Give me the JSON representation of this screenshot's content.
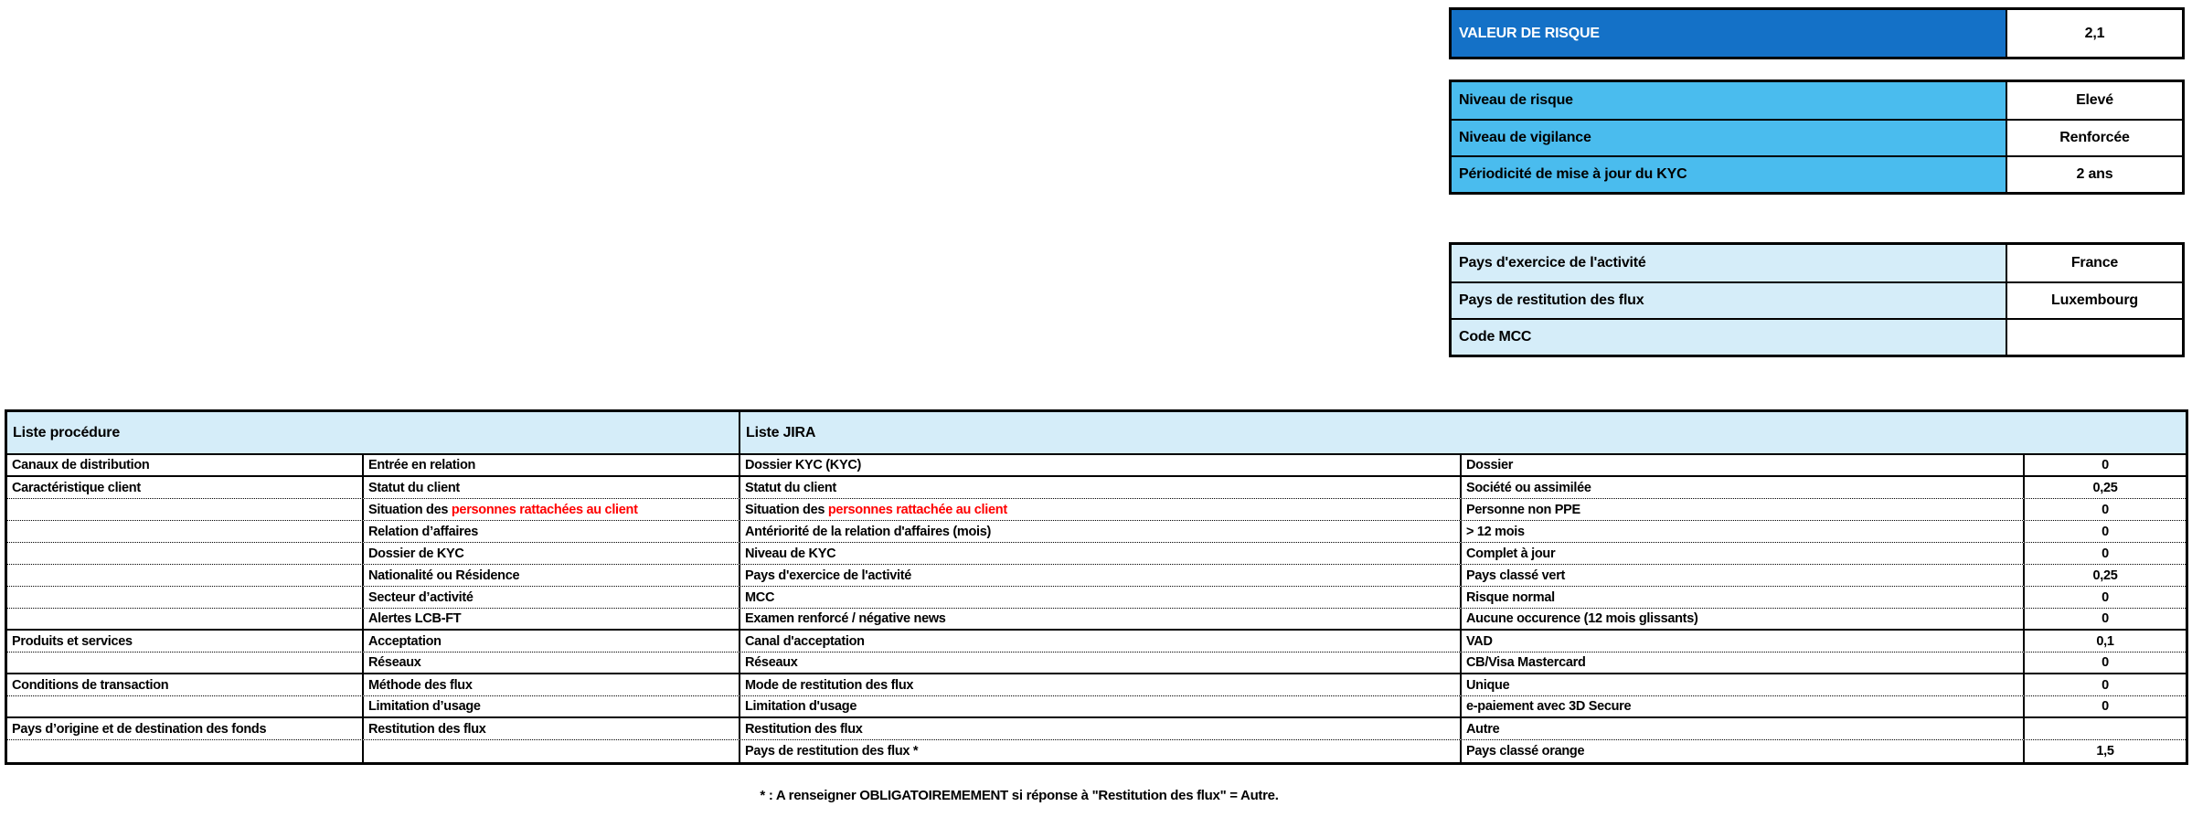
{
  "summary": {
    "risk_value": {
      "label": "VALEUR DE RISQUE",
      "value": "2,1"
    },
    "levels": [
      {
        "label": "Niveau de risque",
        "value": "Elevé"
      },
      {
        "label": "Niveau de vigilance",
        "value": "Renforcée"
      },
      {
        "label": "Périodicité de mise à jour du KYC",
        "value": "2 ans"
      }
    ],
    "pays": [
      {
        "label": "Pays d'exercice de l'activité",
        "value": "France"
      },
      {
        "label": "Pays de restitution des flux",
        "value": "Luxembourg"
      },
      {
        "label": "Code MCC",
        "value": ""
      }
    ]
  },
  "table": {
    "header_procedure": "Liste procédure",
    "header_jira": "Liste JIRA",
    "rows": [
      {
        "category": "Canaux de distribution",
        "procedure": "Entrée en relation",
        "procedure_red": "",
        "jira": "Dossier KYC (KYC)",
        "jira_red": "",
        "value": "Dossier",
        "score": "0",
        "sep": "solid"
      },
      {
        "category": "Caractéristique client",
        "procedure": "Statut du client",
        "procedure_red": "",
        "jira": "Statut du client",
        "jira_red": "",
        "value": "Société ou assimilée",
        "score": "0,25",
        "sep": "dotted"
      },
      {
        "category": "",
        "procedure": "Situation des ",
        "procedure_red": "personnes rattachées au client",
        "jira": "Situation des ",
        "jira_red": "personnes rattachée au client",
        "value": "Personne non PPE",
        "score": "0",
        "sep": "dotted"
      },
      {
        "category": "",
        "procedure": "Relation d’affaires",
        "procedure_red": "",
        "jira": "Antériorité de la relation d'affaires (mois)",
        "jira_red": "",
        "value": "> 12 mois",
        "score": "0",
        "sep": "dotted"
      },
      {
        "category": "",
        "procedure": "Dossier de KYC",
        "procedure_red": "",
        "jira": "Niveau de KYC",
        "jira_red": "",
        "value": "Complet à jour",
        "score": "0",
        "sep": "dotted"
      },
      {
        "category": "",
        "procedure": "Nationalité ou Résidence",
        "procedure_red": "",
        "jira": "Pays d'exercice de l'activité",
        "jira_red": "",
        "value": "Pays classé vert",
        "score": "0,25",
        "sep": "dotted"
      },
      {
        "category": "",
        "procedure": "Secteur d’activité",
        "procedure_red": "",
        "jira": "MCC",
        "jira_red": "",
        "value": "Risque normal",
        "score": "0",
        "sep": "dotted"
      },
      {
        "category": "",
        "procedure": "Alertes LCB-FT",
        "procedure_red": "",
        "jira": "Examen renforcé / négative news",
        "jira_red": "",
        "value": "Aucune occurence (12 mois glissants)",
        "score": "0",
        "sep": "solid"
      },
      {
        "category": "Produits et services",
        "procedure": "Acceptation",
        "procedure_red": "",
        "jira": "Canal d'acceptation",
        "jira_red": "",
        "value": "VAD",
        "score": "0,1",
        "sep": "dotted"
      },
      {
        "category": "",
        "procedure": "Réseaux",
        "procedure_red": "",
        "jira": "Réseaux",
        "jira_red": "",
        "value": "CB/Visa Mastercard",
        "score": "0",
        "sep": "solid"
      },
      {
        "category": "Conditions de transaction",
        "procedure": "Méthode des flux",
        "procedure_red": "",
        "jira": "Mode de restitution des flux",
        "jira_red": "",
        "value": "Unique",
        "score": "0",
        "sep": "dotted"
      },
      {
        "category": "",
        "procedure": "Limitation d’usage",
        "procedure_red": "",
        "jira": "Limitation d'usage",
        "jira_red": "",
        "value": "e-paiement avec 3D Secure",
        "score": "0",
        "sep": "solid"
      },
      {
        "category": "Pays d’origine et de destination des fonds",
        "procedure": "Restitution des flux",
        "procedure_red": "",
        "jira": "Restitution des flux",
        "jira_red": "",
        "value": "Autre",
        "score": "",
        "sep": "dotted"
      },
      {
        "category": "",
        "procedure": "",
        "procedure_red": "",
        "jira": "Pays de restitution des flux *",
        "jira_red": "",
        "value": "Pays classé orange",
        "score": "1,5",
        "sep": "none"
      }
    ]
  },
  "footnote": "* : A renseigner OBLIGATOIREMEMENT si réponse à \"Restitution des flux\" = Autre.",
  "colors": {
    "dark_blue": "#1471C7",
    "sky_blue": "#4ABCEE",
    "light_blue": "#D5EDF9",
    "red": "#FF0000"
  }
}
